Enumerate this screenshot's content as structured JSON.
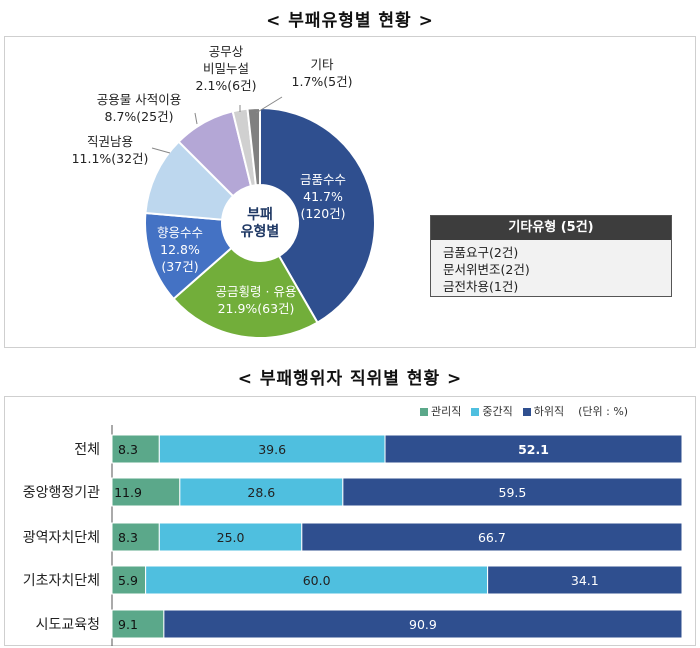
{
  "titles": {
    "pie": "< 부패유형별 현황 >",
    "bar": "< 부패행위자 직위별 현황 >"
  },
  "chart_data": [
    {
      "type": "pie",
      "center_label": [
        "부패",
        "유형별"
      ],
      "slices": [
        {
          "name": "금품수수",
          "percent": 41.7,
          "count_label": "120건",
          "value": 120,
          "color": "#2F4F8F"
        },
        {
          "name": "공금횡령 · 유용",
          "percent": 21.9,
          "count_label": "63건",
          "value": 63,
          "color": "#72AE3A"
        },
        {
          "name": "향응수수",
          "percent": 12.8,
          "count_label": "37건",
          "value": 37,
          "color": "#4472C4"
        },
        {
          "name": "직권남용",
          "percent": 11.1,
          "count_label": "32건",
          "value": 32,
          "color": "#BDD7EE"
        },
        {
          "name": "공용물 사적이용",
          "percent": 8.7,
          "count_label": "25건",
          "value": 25,
          "color": "#B4A7D6"
        },
        {
          "name": "공무상 비밀누설",
          "percent": 2.1,
          "count_label": "6건",
          "value": 6,
          "color": "#D0D0D0"
        },
        {
          "name": "기타",
          "percent": 1.7,
          "count_label": "5건",
          "value": 5,
          "color": "#808080"
        }
      ],
      "outside_labels": [
        {
          "lines": [
            "공무상",
            "비밀누설",
            "2.1%(6건)"
          ]
        },
        {
          "lines": [
            "기타",
            "1.7%(5건)"
          ]
        },
        {
          "lines": [
            "공용물 사적이용",
            "8.7%(25건)"
          ]
        },
        {
          "lines": [
            "직권남용",
            "11.1%(32건)"
          ]
        }
      ],
      "inside_labels": [
        {
          "lines": [
            "금품수수",
            "41.7%",
            "(120건)"
          ]
        },
        {
          "lines": [
            "향응수수",
            "12.8%",
            "(37건)"
          ]
        },
        {
          "lines": [
            "공금횡령 · 유용",
            "21.9%(63건)"
          ]
        }
      ],
      "etc_box": {
        "title": "기타유형 (5건)",
        "items": [
          "금품요구(2건)",
          "문서위변조(2건)",
          "금전차용(1건)"
        ]
      }
    },
    {
      "type": "bar",
      "stacked": true,
      "orientation": "horizontal",
      "unit_label": "(단위 : %)",
      "categories": [
        "전체",
        "중앙행정기관",
        "광역자치단체",
        "기초자치단체",
        "시도교육청"
      ],
      "series": [
        {
          "name": "관리직",
          "color": "#5BA88A",
          "values": [
            8.3,
            11.9,
            8.3,
            5.9,
            9.1
          ],
          "value_labels": [
            "8.3",
            "11.9",
            "8.3",
            "5.9",
            "9.1"
          ]
        },
        {
          "name": "중간직",
          "color": "#4FBFDF",
          "values": [
            39.6,
            28.6,
            25.0,
            60.0,
            0
          ],
          "value_labels": [
            "39.6",
            "28.6",
            "25.0",
            "60.0",
            ""
          ]
        },
        {
          "name": "하위직",
          "color": "#2F4F8F",
          "values": [
            52.1,
            59.5,
            66.7,
            34.1,
            90.9
          ],
          "value_labels": [
            "52.1",
            "59.5",
            "66.7",
            "34.1",
            "90.9"
          ]
        }
      ],
      "xlim": [
        0,
        100
      ]
    }
  ]
}
